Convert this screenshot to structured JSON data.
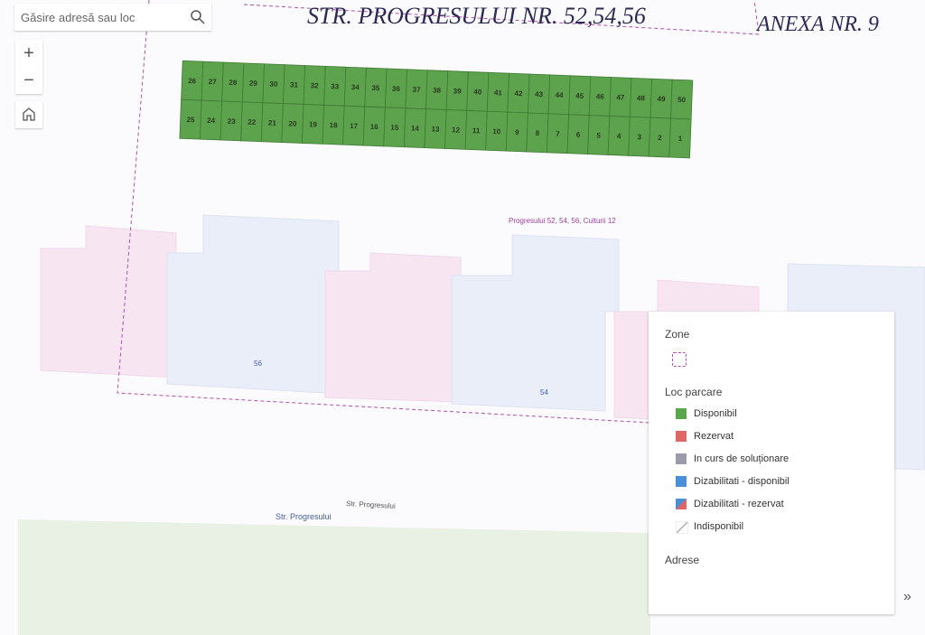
{
  "search": {
    "placeholder": "Găsire adresă sau loc"
  },
  "header": {
    "title": "STR. PROGRESULUI NR. 52,54,56",
    "annex": "ANEXA NR. 9"
  },
  "parking": {
    "top_row": [
      26,
      27,
      28,
      29,
      30,
      31,
      32,
      33,
      34,
      35,
      36,
      37,
      38,
      39,
      40,
      41,
      42,
      43,
      44,
      45,
      46,
      47,
      48,
      49,
      50
    ],
    "bottom_row": [
      25,
      24,
      23,
      22,
      21,
      20,
      19,
      18,
      17,
      16,
      15,
      14,
      13,
      12,
      11,
      10,
      9,
      8,
      7,
      6,
      5,
      4,
      3,
      2,
      1
    ]
  },
  "map_labels": {
    "zone": "Progresului 52, 54, 56, Culturii 12",
    "building_56": "56",
    "building_54": "54",
    "street_1": "Str. Progresului",
    "street_2": "Str. Progresului"
  },
  "legend": {
    "zones_title": "Zone",
    "parking_title": "Loc parcare",
    "items": [
      "Disponibil",
      "Rezervat",
      "In curs de soluționare",
      "Dizabilitati - disponibil",
      "Dizabilitati - rezervat",
      "Indisponibil"
    ],
    "addresses_title": "Adrese"
  }
}
